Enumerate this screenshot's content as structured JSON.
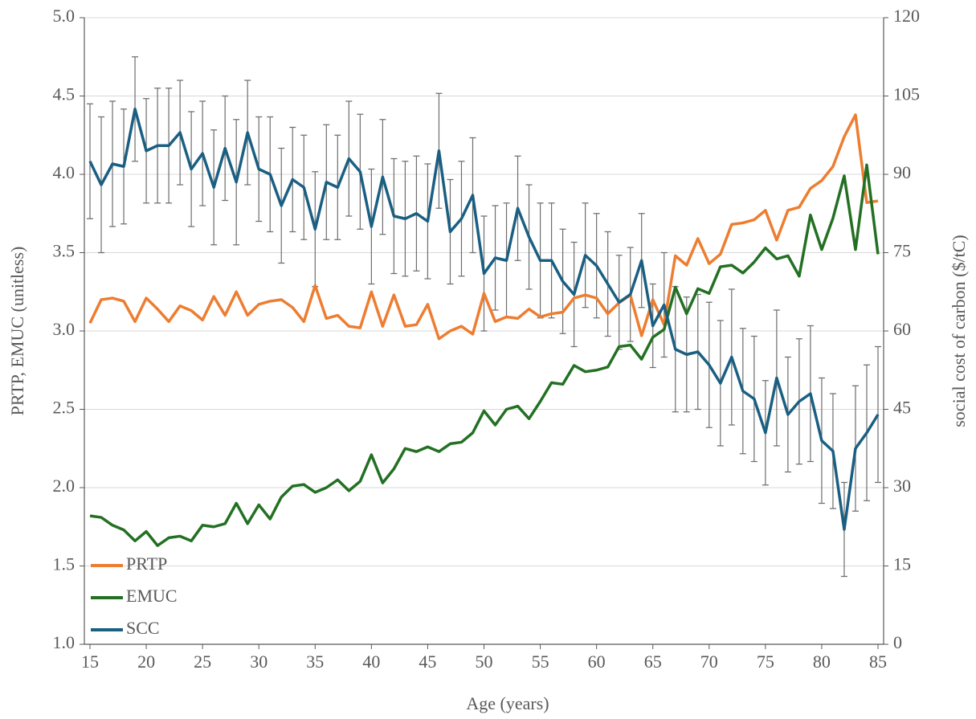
{
  "chart_data": {
    "type": "line",
    "xlabel": "Age (years)",
    "ylabel": "PRTP, EMUC (unitless)",
    "y2label": "social cost of carbon ($/tC)",
    "x": [
      15,
      16,
      17,
      18,
      19,
      20,
      21,
      22,
      23,
      24,
      25,
      26,
      27,
      28,
      29,
      30,
      31,
      32,
      33,
      34,
      35,
      36,
      37,
      38,
      39,
      40,
      41,
      42,
      43,
      44,
      45,
      46,
      47,
      48,
      49,
      50,
      51,
      52,
      53,
      54,
      55,
      56,
      57,
      58,
      59,
      60,
      61,
      62,
      63,
      64,
      65,
      66,
      67,
      68,
      69,
      70,
      71,
      72,
      73,
      74,
      75,
      76,
      77,
      78,
      79,
      80,
      81,
      82,
      83,
      84,
      85
    ],
    "xlim": [
      14.5,
      85.5
    ],
    "xticks": [
      15,
      20,
      25,
      30,
      35,
      40,
      45,
      50,
      55,
      60,
      65,
      70,
      75,
      80,
      85
    ],
    "ylim": [
      1,
      5
    ],
    "yticks": [
      {
        "value": 1,
        "label": "1.0"
      },
      {
        "value": 1.5,
        "label": "1.5"
      },
      {
        "value": 2,
        "label": "2.0"
      },
      {
        "value": 2.5,
        "label": "2.5"
      },
      {
        "value": 3,
        "label": "3.0"
      },
      {
        "value": 3.5,
        "label": "3.5"
      },
      {
        "value": 4,
        "label": "4.0"
      },
      {
        "value": 4.5,
        "label": "4.5"
      },
      {
        "value": 5,
        "label": "5.0"
      }
    ],
    "y2lim": [
      0,
      120
    ],
    "y2ticks": [
      0,
      15,
      30,
      45,
      60,
      75,
      90,
      105,
      120
    ],
    "grid": true,
    "legend": "lower left",
    "series": [
      {
        "name": "PRTP",
        "color": "#ed7d31",
        "axis": "y",
        "values": [
          3.05,
          3.2,
          3.21,
          3.19,
          3.06,
          3.21,
          3.14,
          3.06,
          3.16,
          3.13,
          3.07,
          3.22,
          3.1,
          3.25,
          3.1,
          3.17,
          3.19,
          3.2,
          3.15,
          3.06,
          3.29,
          3.08,
          3.1,
          3.03,
          3.02,
          3.25,
          3.03,
          3.23,
          3.03,
          3.04,
          3.17,
          2.95,
          3.0,
          3.03,
          2.98,
          3.24,
          3.06,
          3.09,
          3.08,
          3.14,
          3.09,
          3.11,
          3.12,
          3.21,
          3.23,
          3.21,
          3.11,
          3.18,
          3.23,
          2.97,
          3.2,
          3.04,
          3.48,
          3.42,
          3.59,
          3.43,
          3.49,
          3.68,
          3.69,
          3.71,
          3.77,
          3.58,
          3.77,
          3.79,
          3.91,
          3.96,
          4.05,
          4.24,
          4.38,
          3.82,
          3.83
        ]
      },
      {
        "name": "EMUC",
        "color": "#237023",
        "axis": "y",
        "values": [
          1.82,
          1.81,
          1.76,
          1.73,
          1.66,
          1.72,
          1.63,
          1.68,
          1.69,
          1.66,
          1.76,
          1.75,
          1.77,
          1.9,
          1.77,
          1.89,
          1.8,
          1.94,
          2.01,
          2.02,
          1.97,
          2.0,
          2.05,
          1.98,
          2.04,
          2.21,
          2.03,
          2.12,
          2.25,
          2.23,
          2.26,
          2.23,
          2.28,
          2.29,
          2.35,
          2.49,
          2.4,
          2.5,
          2.52,
          2.44,
          2.55,
          2.67,
          2.66,
          2.78,
          2.74,
          2.75,
          2.77,
          2.9,
          2.91,
          2.82,
          2.96,
          3.01,
          3.28,
          3.11,
          3.27,
          3.24,
          3.41,
          3.42,
          3.37,
          3.44,
          3.53,
          3.46,
          3.48,
          3.35,
          3.74,
          3.52,
          3.72,
          3.99,
          3.52,
          4.06,
          3.49
        ]
      },
      {
        "name": "SCC",
        "color": "#1a5f82",
        "axis": "y2",
        "values": [
          92.5,
          88,
          92,
          91.5,
          102.5,
          94.5,
          95.5,
          95.5,
          98,
          91,
          94,
          87.5,
          95,
          88.5,
          98,
          91,
          90,
          84,
          89,
          87.5,
          79.5,
          88.5,
          87.5,
          93,
          90.5,
          80,
          89.5,
          82,
          81.5,
          82.5,
          81,
          94.5,
          79,
          81.5,
          86,
          71,
          74,
          73.5,
          83.5,
          78,
          73.5,
          73.5,
          69.5,
          67,
          74.5,
          72.5,
          69,
          65.5,
          67,
          73.5,
          61,
          65,
          56.5,
          55.5,
          56,
          53.5,
          50,
          55,
          48.5,
          47,
          40.5,
          51,
          44,
          46.5,
          48,
          39,
          37,
          22,
          37.5,
          40.5,
          44
        ],
        "errors": [
          11,
          13,
          12,
          11,
          10,
          10,
          11,
          11,
          10,
          11,
          10,
          11,
          10,
          12,
          10,
          10,
          11,
          11,
          10,
          10,
          11,
          11,
          10,
          11,
          11,
          11,
          11,
          11,
          11,
          11,
          11,
          11,
          10,
          11,
          11,
          11,
          10,
          11,
          10,
          10,
          11,
          11,
          10,
          10,
          10,
          10,
          10,
          9,
          9,
          9,
          8,
          10,
          12,
          11,
          11,
          12,
          12,
          13,
          12,
          12,
          10,
          13,
          11,
          12,
          13,
          12,
          11,
          9,
          12,
          13,
          13
        ]
      }
    ]
  }
}
